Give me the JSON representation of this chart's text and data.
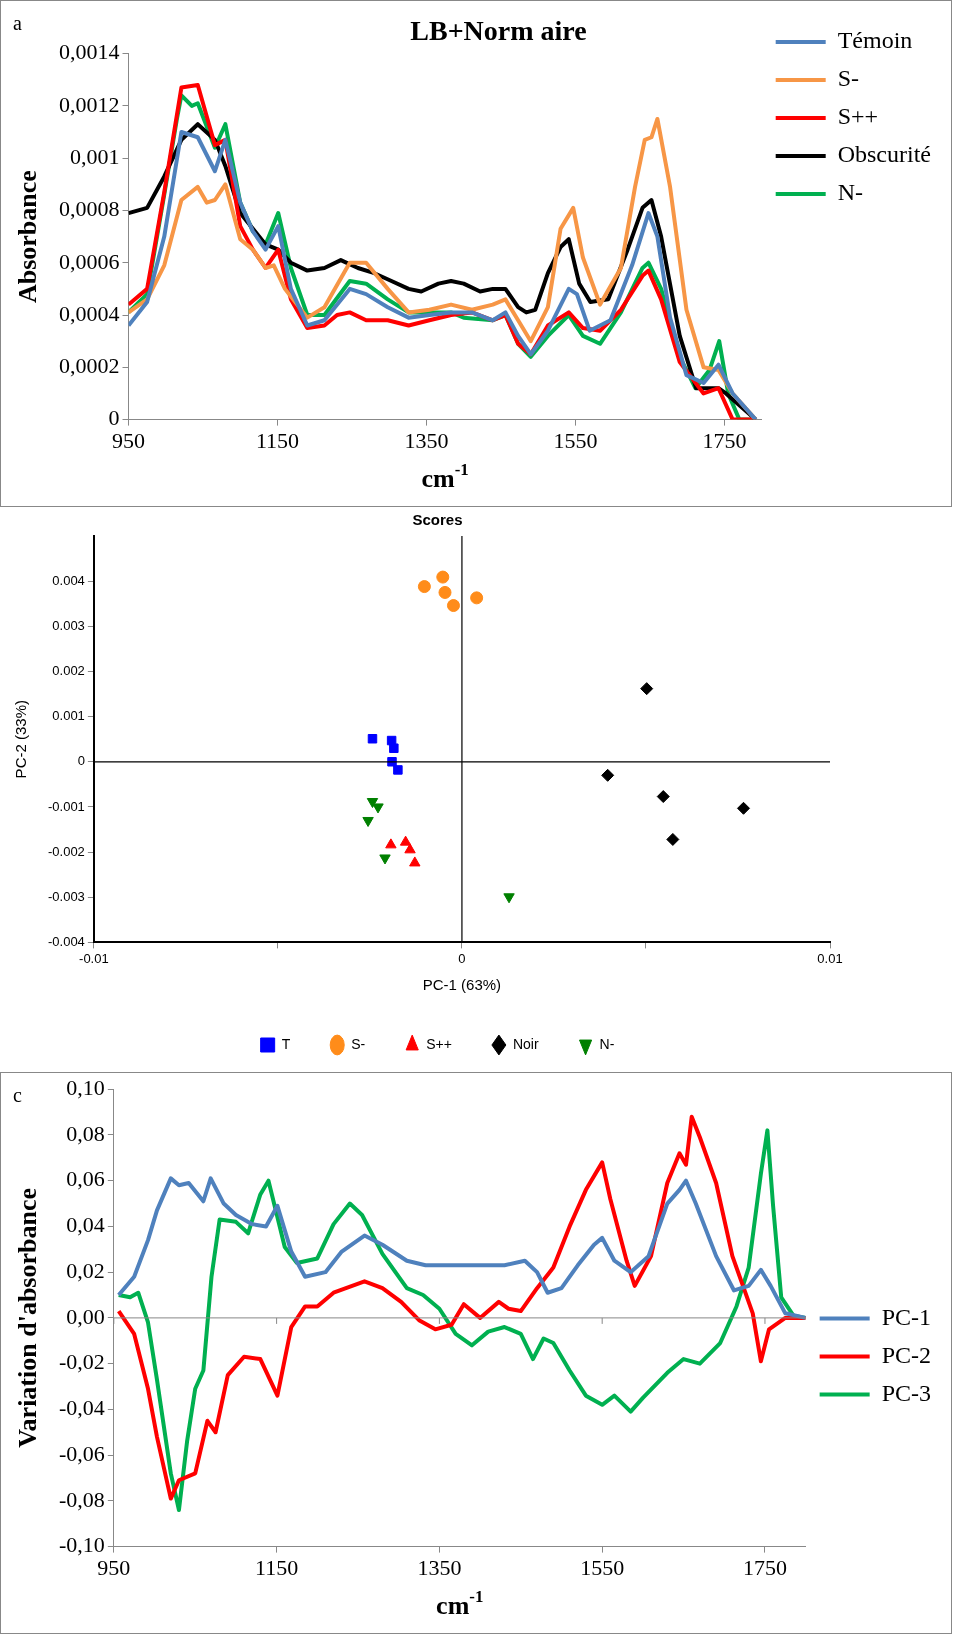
{
  "chart_data": [
    {
      "type": "line",
      "title": "LB+Norm aire",
      "xlabel": "cm$^{-1}$",
      "ylabel": "Absorbance",
      "annotations": [
        "a"
      ],
      "marker": "none",
      "legend": "top right",
      "xlim": [
        950,
        1800
      ],
      "xticks": [
        950,
        1150,
        1350,
        1550,
        1750
      ],
      "ylim": [
        0,
        0.0014
      ],
      "yticks": [
        0,
        {
          "value": 0.0002,
          "label": "0,0002"
        },
        {
          "value": 0.0004,
          "label": "0,0004"
        },
        {
          "value": 0.0006,
          "label": "0,0006"
        },
        {
          "value": 0.0008,
          "label": "0,0008"
        },
        {
          "value": 0.001,
          "label": "0,001"
        },
        {
          "value": 0.0012,
          "label": "0,0012"
        },
        {
          "value": 0.0014,
          "label": "0,0014"
        }
      ],
      "series": [
        {
          "name": "Témoin",
          "color": "#4f81bd",
          "x": [
            950,
            975,
            998,
            1021,
            1043,
            1066,
            1080,
            1100,
            1117,
            1134,
            1151,
            1168,
            1190,
            1213,
            1247,
            1269,
            1298,
            1326,
            1354,
            1383,
            1411,
            1439,
            1456,
            1473,
            1490,
            1513,
            1541,
            1552,
            1569,
            1597,
            1626,
            1648,
            1660,
            1677,
            1699,
            1722,
            1742,
            1761,
            1792
          ],
          "values": [
            0.00036,
            0.00045,
            0.0007,
            0.0011,
            0.00108,
            0.00095,
            0.00107,
            0.00083,
            0.00072,
            0.00065,
            0.00074,
            0.0005,
            0.00036,
            0.00038,
            0.0005,
            0.00048,
            0.00043,
            0.00039,
            0.0004,
            0.00041,
            0.00041,
            0.00038,
            0.00041,
            0.00032,
            0.00025,
            0.00034,
            0.0005,
            0.00048,
            0.00034,
            0.00038,
            0.00059,
            0.00079,
            0.0007,
            0.00039,
            0.00017,
            0.00014,
            0.00021,
            0.0001,
            0
          ]
        },
        {
          "name": "S-",
          "color": "#f79646",
          "x": [
            950,
            975,
            998,
            1021,
            1043,
            1055,
            1066,
            1080,
            1100,
            1117,
            1134,
            1145,
            1160,
            1190,
            1213,
            1247,
            1269,
            1298,
            1326,
            1354,
            1383,
            1411,
            1439,
            1456,
            1473,
            1490,
            1513,
            1530,
            1547,
            1560,
            1583,
            1611,
            1630,
            1643,
            1652,
            1660,
            1677,
            1699,
            1722,
            1742,
            1761,
            1792
          ],
          "values": [
            0.00041,
            0.00046,
            0.00059,
            0.00084,
            0.00089,
            0.00083,
            0.00084,
            0.0009,
            0.00069,
            0.00065,
            0.00058,
            0.00059,
            0.0005,
            0.00039,
            0.00043,
            0.0006,
            0.0006,
            0.0005,
            0.00041,
            0.00042,
            0.00044,
            0.00042,
            0.00044,
            0.00046,
            0.00038,
            0.0003,
            0.00043,
            0.00073,
            0.00081,
            0.00062,
            0.00044,
            0.00058,
            0.00089,
            0.00107,
            0.00108,
            0.00115,
            0.00089,
            0.00042,
            0.0002,
            0.00019,
            0.0001,
            0
          ]
        },
        {
          "name": "S++",
          "color": "#ff0000",
          "x": [
            950,
            975,
            998,
            1021,
            1043,
            1066,
            1080,
            1100,
            1117,
            1134,
            1151,
            1168,
            1190,
            1213,
            1230,
            1247,
            1269,
            1298,
            1326,
            1354,
            1383,
            1411,
            1439,
            1456,
            1473,
            1490,
            1513,
            1541,
            1560,
            1583,
            1611,
            1640,
            1648,
            1665,
            1690,
            1722,
            1742,
            1761,
            1792
          ],
          "values": [
            0.00044,
            0.0005,
            0.00087,
            0.00127,
            0.00128,
            0.00105,
            0.00107,
            0.00074,
            0.00065,
            0.00058,
            0.00065,
            0.00046,
            0.00035,
            0.00036,
            0.0004,
            0.00041,
            0.00038,
            0.00038,
            0.00036,
            0.00038,
            0.0004,
            0.00041,
            0.00038,
            0.0004,
            0.00029,
            0.00025,
            0.00036,
            0.00041,
            0.00035,
            0.00034,
            0.00042,
            0.00055,
            0.00057,
            0.00046,
            0.00022,
            0.0001,
            0.00012,
            0,
            0
          ]
        },
        {
          "name": "Obscurité",
          "color": "#000000",
          "x": [
            950,
            975,
            998,
            1021,
            1043,
            1066,
            1080,
            1100,
            1117,
            1134,
            1151,
            1168,
            1190,
            1213,
            1235,
            1258,
            1280,
            1303,
            1326,
            1343,
            1366,
            1383,
            1400,
            1422,
            1439,
            1456,
            1473,
            1484,
            1496,
            1513,
            1530,
            1541,
            1555,
            1570,
            1594,
            1620,
            1640,
            1652,
            1665,
            1690,
            1712,
            1730,
            1742,
            1752,
            1792
          ],
          "values": [
            0.00079,
            0.00081,
            0.00093,
            0.00107,
            0.00113,
            0.00107,
            0.00097,
            0.00079,
            0.00073,
            0.00067,
            0.00065,
            0.0006,
            0.00057,
            0.00058,
            0.00061,
            0.00058,
            0.00056,
            0.00053,
            0.0005,
            0.00049,
            0.00052,
            0.00053,
            0.00052,
            0.00049,
            0.0005,
            0.0005,
            0.00043,
            0.00041,
            0.00042,
            0.00056,
            0.00066,
            0.00069,
            0.00052,
            0.00045,
            0.00046,
            0.00065,
            0.00081,
            0.00084,
            0.0007,
            0.00032,
            0.00012,
            0.00012,
            0.00012,
            0.0001,
            0
          ]
        },
        {
          "name": "N-",
          "color": "#00b050",
          "x": [
            950,
            975,
            998,
            1015,
            1021,
            1035,
            1043,
            1066,
            1080,
            1100,
            1117,
            1134,
            1151,
            1168,
            1190,
            1213,
            1247,
            1269,
            1298,
            1326,
            1354,
            1383,
            1400,
            1439,
            1456,
            1473,
            1490,
            1513,
            1541,
            1560,
            1583,
            1611,
            1640,
            1648,
            1665,
            1690,
            1711,
            1730,
            1743,
            1755,
            1770,
            1792
          ],
          "values": [
            0.00041,
            0.00048,
            0.00086,
            0.00115,
            0.00124,
            0.0012,
            0.00121,
            0.00104,
            0.00113,
            0.00083,
            0.00072,
            0.00067,
            0.00079,
            0.00058,
            0.0004,
            0.0004,
            0.00053,
            0.00052,
            0.00046,
            0.00041,
            0.00041,
            0.00041,
            0.00039,
            0.00038,
            0.0004,
            0.00029,
            0.00024,
            0.00032,
            0.0004,
            0.00032,
            0.00029,
            0.00041,
            0.00058,
            0.0006,
            0.0005,
            0.00024,
            0.00012,
            0.00019,
            0.0003,
            0.0001,
            0,
            0
          ]
        }
      ]
    },
    {
      "type": "scatter",
      "title": "Scores",
      "xlabel": "PC-1 (63%)",
      "ylabel": "PC-2 (33%)",
      "legend": "bottom",
      "xlim": [
        -0.01,
        0.01
      ],
      "xticks": [
        -0.01,
        {
          "value": -0.005,
          "label": null
        },
        0,
        {
          "value": 0.005,
          "label": null
        },
        0.01
      ],
      "ylim": [
        -0.004,
        0.005
      ],
      "yticks": [
        -0.004,
        -0.003,
        -0.002,
        -0.001,
        0,
        0.001,
        0.002,
        0.003,
        0.004
      ],
      "series": [
        {
          "name": "T",
          "color": "#0000ff",
          "marker": "square",
          "x": [
            -0.00243,
            -0.00191,
            -0.00185,
            -0.0019,
            -0.00174
          ],
          "values": [
            0.00051,
            0.00047,
            0.0003,
            0.0,
            -0.00018
          ]
        },
        {
          "name": "S-",
          "color": "#ff8c1a",
          "marker": "circle",
          "x": [
            -0.00102,
            -0.00052,
            -0.00046,
            -0.00023,
            0.0004
          ],
          "values": [
            0.00388,
            0.00409,
            0.00375,
            0.00346,
            0.00363
          ]
        },
        {
          "name": "S++",
          "color": "#ff0000",
          "marker": "triangle",
          "x": [
            -0.00193,
            -0.00153,
            -0.00141,
            -0.00128
          ],
          "values": [
            -0.00184,
            -0.00178,
            -0.00195,
            -0.00224
          ]
        },
        {
          "name": "Noir",
          "color": "#000000",
          "marker": "diamond",
          "x": [
            0.00502,
            0.00396,
            0.00547,
            0.00765,
            0.00573
          ],
          "values": [
            0.00162,
            -0.0003,
            -0.00077,
            -0.00103,
            -0.00172
          ]
        },
        {
          "name": "N-",
          "color": "#008000",
          "marker": "triangle-down",
          "x": [
            -0.00243,
            -0.00228,
            -0.00255,
            -0.00209,
            0.00128
          ],
          "values": [
            -0.00088,
            -0.001,
            -0.0013,
            -0.00213,
            -0.00299
          ]
        }
      ]
    },
    {
      "type": "line",
      "xlabel": "cm$^{-1}$",
      "ylabel": "Variation d'absorbance",
      "annotations": [
        "c"
      ],
      "marker": "none",
      "legend": "right",
      "xlim": [
        950,
        1800
      ],
      "xticks": [
        950,
        1150,
        1350,
        1550,
        1750
      ],
      "ylim": [
        -0.1,
        0.1
      ],
      "yticks": [
        {
          "value": -0.1,
          "label": "-0,10"
        },
        {
          "value": -0.08,
          "label": "-0,08"
        },
        {
          "value": -0.06,
          "label": "-0,06"
        },
        {
          "value": -0.04,
          "label": "-0,04"
        },
        {
          "value": -0.02,
          "label": "-0,02"
        },
        {
          "value": 0,
          "label": "0,00"
        },
        {
          "value": 0.02,
          "label": "0,02"
        },
        {
          "value": 0.04,
          "label": "0,04"
        },
        {
          "value": 0.06,
          "label": "0,06"
        },
        {
          "value": 0.08,
          "label": "0,08"
        },
        {
          "value": 0.1,
          "label": "0,10"
        }
      ],
      "series": [
        {
          "name": "PC-1",
          "color": "#4f81bd",
          "x": [
            956,
            975,
            992,
            1003,
            1020,
            1030,
            1042,
            1060,
            1069,
            1085,
            1100,
            1120,
            1137,
            1151,
            1168,
            1185,
            1210,
            1230,
            1258,
            1280,
            1310,
            1333,
            1370,
            1400,
            1430,
            1455,
            1470,
            1483,
            1500,
            1520,
            1540,
            1550,
            1565,
            1585,
            1607,
            1630,
            1645,
            1653,
            1665,
            1690,
            1712,
            1730,
            1745,
            1757,
            1775,
            1800
          ],
          "values": [
            0.01,
            0.018,
            0.034,
            0.047,
            0.061,
            0.058,
            0.059,
            0.051,
            0.061,
            0.05,
            0.045,
            0.041,
            0.04,
            0.049,
            0.029,
            0.018,
            0.02,
            0.029,
            0.036,
            0.032,
            0.025,
            0.023,
            0.023,
            0.023,
            0.023,
            0.025,
            0.02,
            0.011,
            0.013,
            0.023,
            0.032,
            0.035,
            0.025,
            0.02,
            0.027,
            0.05,
            0.056,
            0.06,
            0.05,
            0.027,
            0.012,
            0.014,
            0.021,
            0.014,
            0.002,
            0.0
          ]
        },
        {
          "name": "PC-2",
          "color": "#ff0000",
          "x": [
            956,
            975,
            992,
            1003,
            1020,
            1030,
            1050,
            1065,
            1075,
            1090,
            1110,
            1130,
            1151,
            1168,
            1185,
            1200,
            1220,
            1258,
            1280,
            1303,
            1325,
            1345,
            1365,
            1380,
            1400,
            1423,
            1435,
            1450,
            1470,
            1490,
            1510,
            1530,
            1550,
            1560,
            1580,
            1590,
            1610,
            1630,
            1645,
            1653,
            1660,
            1670,
            1690,
            1710,
            1735,
            1745,
            1755,
            1775,
            1800
          ],
          "values": [
            0.003,
            -0.007,
            -0.031,
            -0.052,
            -0.079,
            -0.071,
            -0.068,
            -0.045,
            -0.05,
            -0.025,
            -0.017,
            -0.018,
            -0.034,
            -0.004,
            0.005,
            0.005,
            0.011,
            0.016,
            0.013,
            0.007,
            -0.001,
            -0.005,
            -0.003,
            0.006,
            0.0,
            0.007,
            0.004,
            0.003,
            0.013,
            0.022,
            0.04,
            0.056,
            0.068,
            0.052,
            0.025,
            0.014,
            0.027,
            0.059,
            0.072,
            0.067,
            0.088,
            0.079,
            0.059,
            0.027,
            0.002,
            -0.019,
            -0.005,
            0.0,
            0.0
          ]
        },
        {
          "name": "PC-3",
          "color": "#00b050",
          "x": [
            956,
            970,
            980,
            992,
            1003,
            1020,
            1030,
            1040,
            1050,
            1060,
            1070,
            1080,
            1100,
            1115,
            1130,
            1140,
            1160,
            1175,
            1200,
            1220,
            1240,
            1255,
            1280,
            1310,
            1330,
            1350,
            1370,
            1390,
            1410,
            1430,
            1450,
            1465,
            1478,
            1490,
            1510,
            1530,
            1550,
            1565,
            1585,
            1600,
            1630,
            1650,
            1670,
            1695,
            1715,
            1730,
            1745,
            1753,
            1760,
            1770,
            1785,
            1800
          ],
          "values": [
            0.01,
            0.009,
            0.011,
            -0.002,
            -0.027,
            -0.068,
            -0.084,
            -0.054,
            -0.031,
            -0.023,
            0.018,
            0.043,
            0.042,
            0.037,
            0.054,
            0.06,
            0.031,
            0.024,
            0.026,
            0.041,
            0.05,
            0.045,
            0.028,
            0.013,
            0.01,
            0.004,
            -0.007,
            -0.012,
            -0.006,
            -0.004,
            -0.007,
            -0.018,
            -0.009,
            -0.011,
            -0.023,
            -0.034,
            -0.038,
            -0.034,
            -0.041,
            -0.035,
            -0.024,
            -0.018,
            -0.02,
            -0.011,
            0.005,
            0.022,
            0.063,
            0.082,
            0.049,
            0.009,
            0.001,
            0.0
          ]
        }
      ]
    }
  ]
}
